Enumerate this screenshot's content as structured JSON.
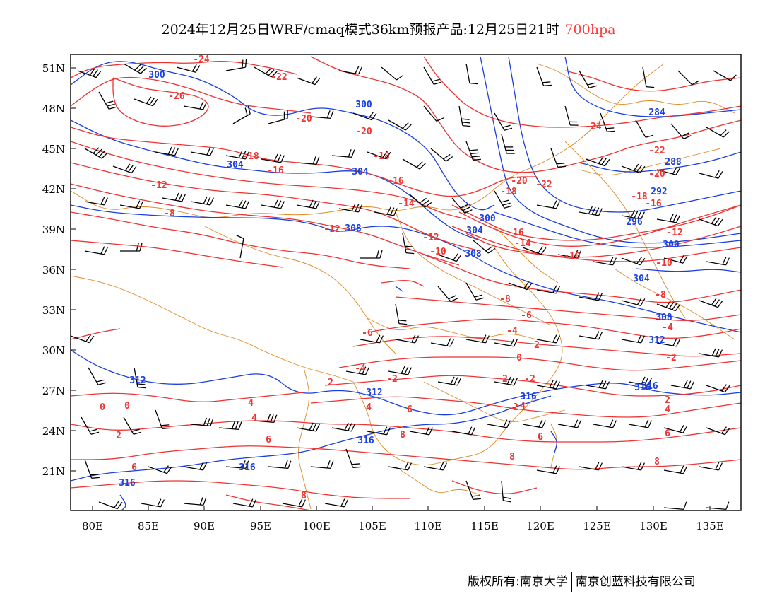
{
  "title": {
    "main": "2024年12月25日WRF/cmaq模式36km预报产品:12月25日21时",
    "level": "700hpa",
    "level_color": "#ff3b3b"
  },
  "axes": {
    "lat_labels": [
      "51N",
      "48N",
      "45N",
      "42N",
      "39N",
      "36N",
      "33N",
      "30N",
      "27N",
      "24N",
      "21N"
    ],
    "lon_labels": [
      "80E",
      "85E",
      "90E",
      "95E",
      "100E",
      "105E",
      "110E",
      "115E",
      "120E",
      "125E",
      "130E",
      "135E"
    ]
  },
  "colors": {
    "temperature": "#ee3333",
    "geopotential_height": "#1a3fe0",
    "boundary": "#e08a2a",
    "wind_barb": "#000000"
  },
  "temperature_labels": [
    "-24",
    "-22",
    "-26",
    "-20",
    "-20",
    "-18",
    "-18",
    "-16",
    "-16",
    "-14",
    "-12",
    "-8",
    "-12",
    "-12",
    "-10",
    "-18",
    "-20",
    "-22",
    "-16",
    "-14",
    "-10",
    "-24",
    "-22",
    "-20",
    "-18",
    "-16",
    "-12",
    "-10",
    "-8",
    "-8",
    "-6",
    "-6",
    "-4",
    "-4",
    "-2",
    "-2",
    "0",
    "2",
    "-4",
    "-2",
    "2",
    "4",
    "2",
    "4",
    "6",
    "0",
    "2",
    "4",
    "6",
    "8",
    "2",
    "4",
    "6",
    "0",
    "2",
    "6",
    "8",
    "8",
    "6",
    "8",
    "4",
    "6",
    "-4"
  ],
  "height_labels": [
    "300",
    "300",
    "304",
    "304",
    "308",
    "300",
    "304",
    "308",
    "284",
    "288",
    "292",
    "296",
    "300",
    "304",
    "308",
    "312",
    "312",
    "312",
    "316",
    "316",
    "316",
    "316",
    "316",
    "316"
  ],
  "footer": {
    "left": "版权所有:南京大学",
    "right": "南京创蓝科技有限公司"
  }
}
